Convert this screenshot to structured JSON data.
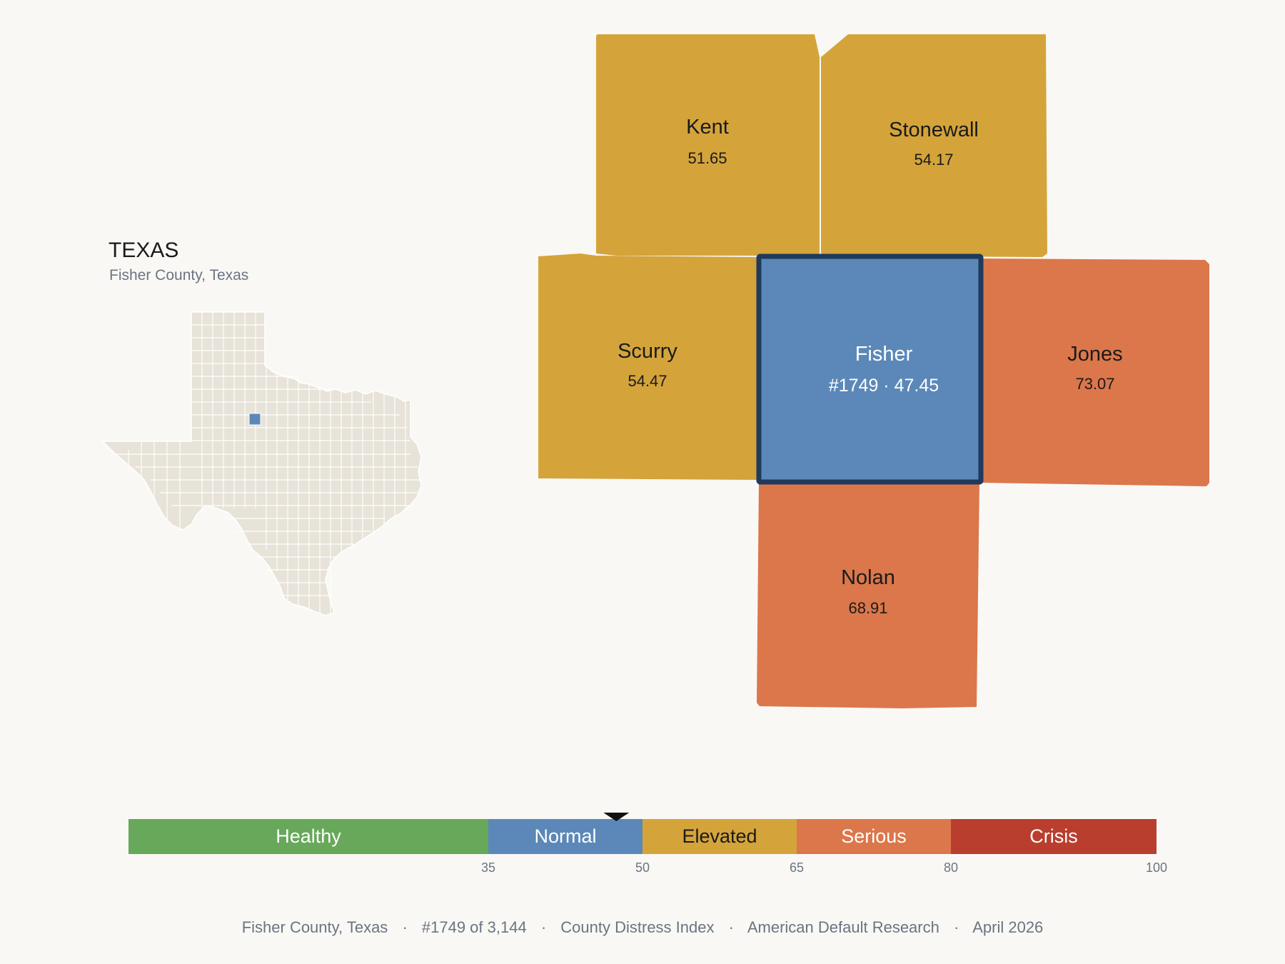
{
  "state_panel": {
    "state_name": "TEXAS",
    "county_label": "Fisher County, Texas"
  },
  "colors": {
    "background": "#f9f8f5",
    "state_fill": "#e8e3d8",
    "focus": "#5b88b8",
    "focus_border": "#1f3a5c",
    "healthy": "#67a85a",
    "normal": "#5b88b8",
    "elevated": "#d4a43b",
    "serious": "#db774b",
    "crisis": "#b93e2d"
  },
  "counties": {
    "kent": {
      "name": "Kent",
      "value": "51.65",
      "category": "elevated"
    },
    "stonewall": {
      "name": "Stonewall",
      "value": "54.17",
      "category": "elevated"
    },
    "scurry": {
      "name": "Scurry",
      "value": "54.47",
      "category": "elevated"
    },
    "fisher": {
      "name": "Fisher",
      "value": "#1749 · 47.45",
      "category": "normal"
    },
    "jones": {
      "name": "Jones",
      "value": "73.07",
      "category": "serious"
    },
    "nolan": {
      "name": "Nolan",
      "value": "68.91",
      "category": "serious"
    }
  },
  "scale": {
    "min": 0,
    "max": 100,
    "marker_value": 47.45,
    "bands": [
      {
        "label": "Healthy",
        "from": 0,
        "to": 35,
        "color": "#67a85a",
        "text_color": "#ffffff"
      },
      {
        "label": "Normal",
        "from": 35,
        "to": 50,
        "color": "#5b88b8",
        "text_color": "#ffffff"
      },
      {
        "label": "Elevated",
        "from": 50,
        "to": 65,
        "color": "#d4a43b",
        "text_color": "#1a1a1a"
      },
      {
        "label": "Serious",
        "from": 65,
        "to": 80,
        "color": "#db774b",
        "text_color": "#ffffff"
      },
      {
        "label": "Crisis",
        "from": 80,
        "to": 100,
        "color": "#b93e2d",
        "text_color": "#ffffff"
      }
    ],
    "ticks": [
      "35",
      "50",
      "65",
      "80",
      "100"
    ]
  },
  "footer": {
    "county": "Fisher County, Texas",
    "rank": "#1749 of 3,144",
    "index_name": "County Distress Index",
    "publisher": "American Default Research",
    "date": "April 2026",
    "separator": "·"
  }
}
